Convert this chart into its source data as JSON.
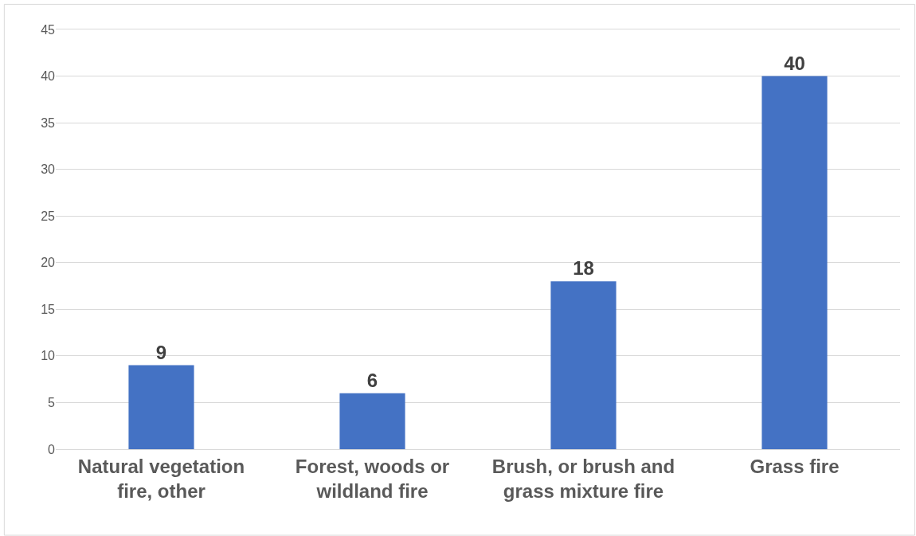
{
  "chart_data": {
    "type": "bar",
    "categories": [
      "Natural vegetation fire, other",
      "Forest, woods or wildland fire",
      "Brush, or brush and grass mixture fire",
      "Grass fire"
    ],
    "values": [
      9,
      6,
      18,
      40
    ],
    "color": "#4472c4",
    "ylim": [
      0,
      45
    ],
    "yticks": [
      0,
      5,
      10,
      15,
      20,
      25,
      30,
      35,
      40,
      45
    ],
    "grid": "y",
    "data_labels": true
  }
}
